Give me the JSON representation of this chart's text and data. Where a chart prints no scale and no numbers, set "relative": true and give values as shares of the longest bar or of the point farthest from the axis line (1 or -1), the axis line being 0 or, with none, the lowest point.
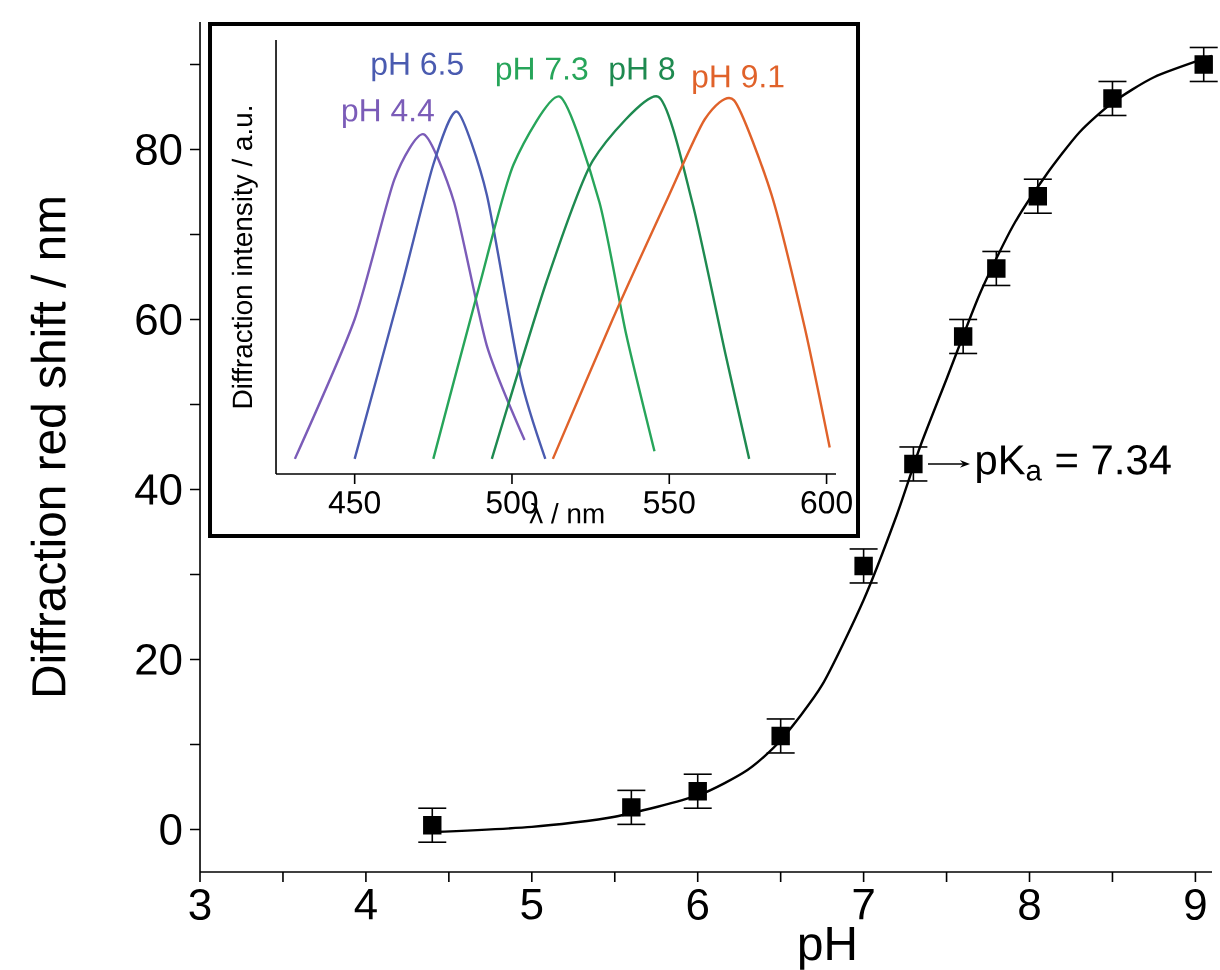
{
  "chart_data": [
    {
      "type": "scatter",
      "xlabel": "pH",
      "ylabel": "Diffraction red shift / nm",
      "xlim": [
        3,
        9.1
      ],
      "ylim": [
        -5,
        95
      ],
      "xticks": [
        3,
        {
          "value": 3.5,
          "label": null
        },
        4,
        {
          "value": 4.5,
          "label": null
        },
        5,
        {
          "value": 5.5,
          "label": null
        },
        6,
        {
          "value": 6.5,
          "label": null
        },
        7,
        {
          "value": 7.5,
          "label": null
        },
        8,
        {
          "value": 8.5,
          "label": null
        },
        9
      ],
      "yticks": [
        0,
        {
          "value": 10,
          "label": null
        },
        20,
        {
          "value": 30,
          "label": null
        },
        40,
        {
          "value": 50,
          "label": null
        },
        60,
        {
          "value": 70,
          "label": null
        },
        80,
        {
          "value": 90,
          "label": null
        }
      ],
      "series": [
        {
          "type": "scatter",
          "marker": "square",
          "color": "#000000",
          "x": [
            4.4,
            5.6,
            6.0,
            6.5,
            7.0,
            7.3,
            7.6,
            7.8,
            8.05,
            8.5,
            9.05
          ],
          "values": [
            0.5,
            2.6,
            4.5,
            11,
            31,
            43,
            58,
            66,
            74.5,
            86,
            90
          ],
          "errors": [
            2,
            2,
            2,
            2,
            2,
            2,
            2,
            2,
            2,
            2,
            2
          ]
        },
        {
          "type": "line",
          "color": "#000000",
          "x": [
            4.4,
            5,
            5.5,
            6,
            6.3,
            6.5,
            6.75,
            7,
            7.2,
            7.34,
            7.5,
            7.7,
            7.9,
            8.1,
            8.3,
            8.5,
            8.75,
            9.1
          ],
          "values": [
            -0.3,
            0.3,
            1.5,
            4,
            7,
            10.5,
            17,
            27,
            37,
            45,
            53,
            63,
            71,
            77,
            82,
            85.5,
            88.5,
            91
          ]
        }
      ],
      "annotations": [
        {
          "text": "pK$_{a}$ = 7.34",
          "x": 7.34,
          "y": 43
        }
      ]
    },
    {
      "type": "line",
      "relative": true,
      "xlabel": "λ / nm",
      "ylabel": "Diffraction intensity / a.u.",
      "tick_labels": "x",
      "xlim": [
        425,
        603
      ],
      "xticks": [
        450,
        500,
        550,
        600
      ],
      "series": [
        {
          "name": "pH 4.4",
          "color": "#7b5cb8",
          "x": [
            431,
            450,
            462.6,
            472,
            481.6,
            492,
            504
          ],
          "values": [
            0.04,
            0.41,
            0.78,
            0.9,
            0.72,
            0.34,
            0.09
          ]
        },
        {
          "name": "pH 6.5",
          "color": "#4a5bb0",
          "x": [
            450,
            464.7,
            475,
            482.6,
            492,
            502.6,
            510.6
          ],
          "values": [
            0.04,
            0.49,
            0.82,
            0.96,
            0.74,
            0.26,
            0.04
          ]
        },
        {
          "name": "pH 7.3",
          "color": "#27a55a",
          "x": [
            475,
            490,
            500.5,
            515.2,
            527.8,
            536.3,
            545.3
          ],
          "values": [
            0.04,
            0.51,
            0.82,
            1.0,
            0.72,
            0.37,
            0.06
          ]
        },
        {
          "name": "pH 8",
          "color": "#1e8a50",
          "x": [
            493.6,
            511,
            525.7,
            546.4,
            557.3,
            567.8,
            575.4
          ],
          "values": [
            0.04,
            0.51,
            0.83,
            1.0,
            0.72,
            0.32,
            0.04
          ]
        },
        {
          "name": "pH 9.1",
          "color": "#e0622a",
          "x": [
            513,
            532,
            548.9,
            561.3,
            570.6,
            582.5,
            593,
            601
          ],
          "values": [
            0.04,
            0.41,
            0.72,
            0.94,
            0.99,
            0.74,
            0.39,
            0.07
          ]
        }
      ]
    }
  ]
}
